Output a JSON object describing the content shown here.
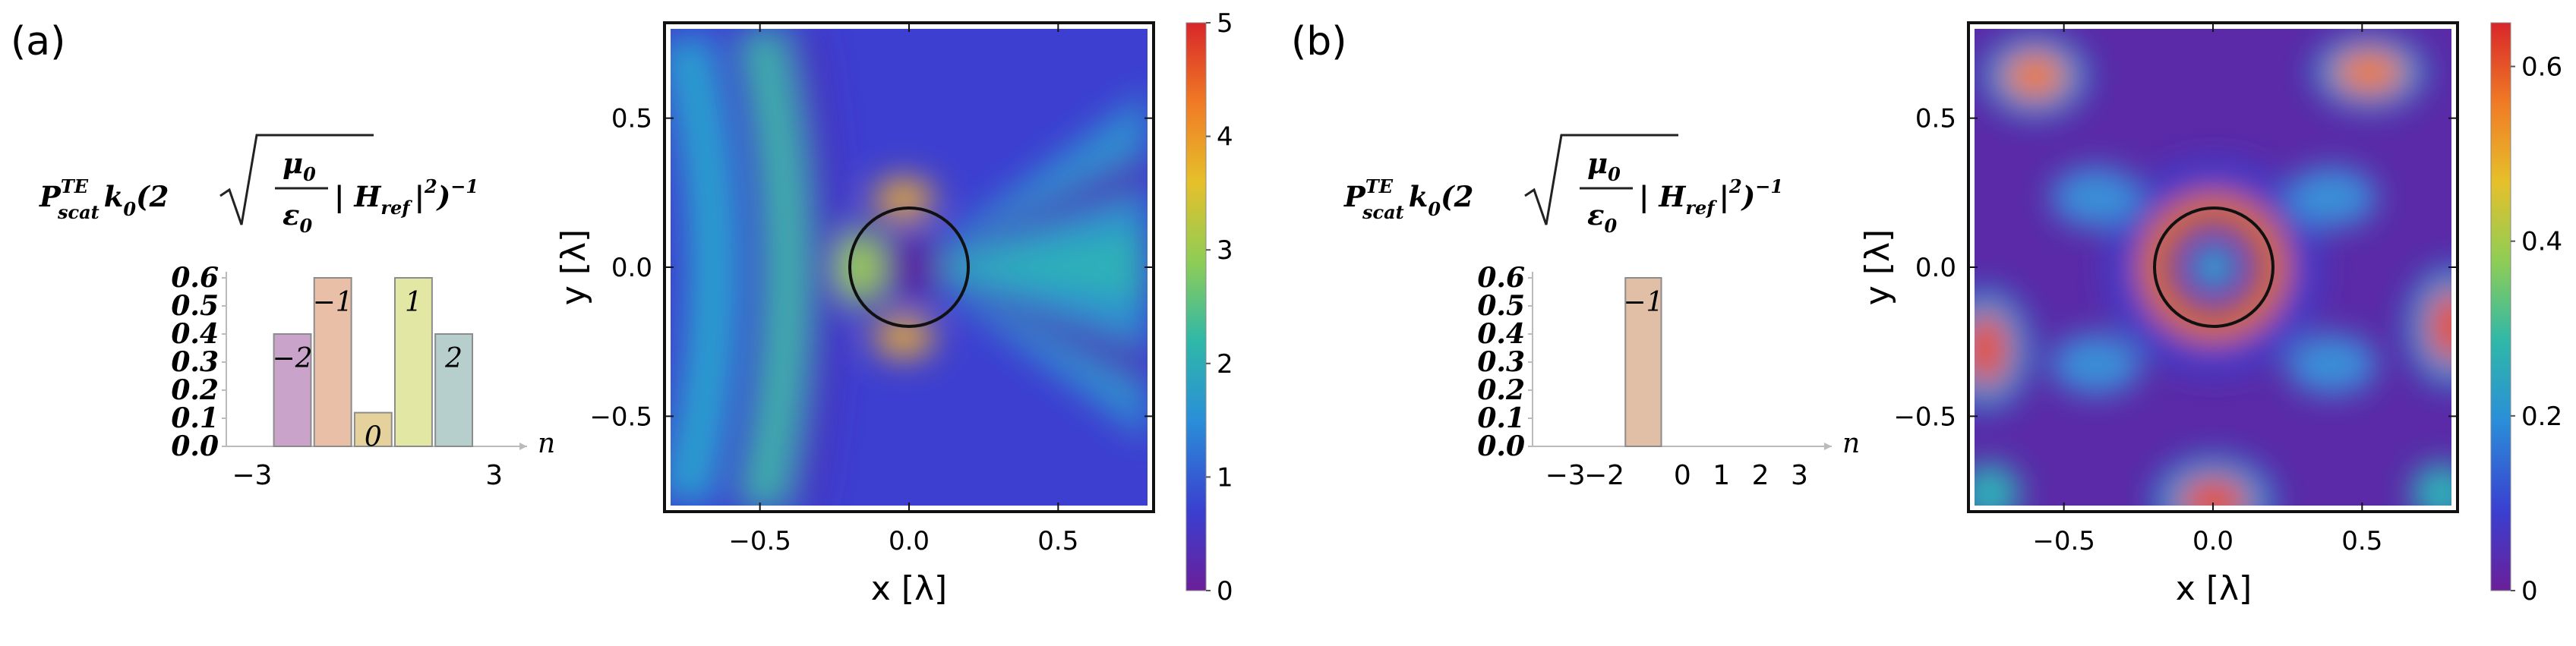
{
  "figure": {
    "panels": [
      {
        "label": "(a)",
        "bar_title": {
          "P": "P",
          "P_sup": "TE",
          "P_sub": "scat",
          "k": "k",
          "k_sub": "0",
          "open": "(2",
          "mu": "μ",
          "mu_sub": "0",
          "eps": "ε",
          "eps_sub": "0",
          "H": "| H",
          "H_sub": "ref",
          "close": "|",
          "close_sup": "2",
          "end": ")",
          "end_sup": "−1"
        },
        "map_xlabel": "x [λ]",
        "map_ylabel": "y [λ]",
        "colorbar": {
          "min": 0,
          "max": 5,
          "ticks": [
            "0",
            "1",
            "2",
            "3",
            "4",
            "5"
          ]
        }
      },
      {
        "label": "(b)",
        "bar_title": {
          "P": "P",
          "P_sup": "TE",
          "P_sub": "scat",
          "k": "k",
          "k_sub": "0",
          "open": "(2",
          "mu": "μ",
          "mu_sub": "0",
          "eps": "ε",
          "eps_sub": "0",
          "H": "| H",
          "H_sub": "ref",
          "close": "|",
          "close_sup": "2",
          "end": ")",
          "end_sup": "−1"
        },
        "map_xlabel": "x [λ]",
        "map_ylabel": "y [λ]",
        "colorbar": {
          "min": 0,
          "max": 0.65,
          "ticks": [
            "0",
            "0.2",
            "0.4",
            "0.6"
          ]
        }
      }
    ],
    "colorbar_colors": [
      "#6b1f99",
      "#3a3fd0",
      "#2a8fd8",
      "#2fb8a8",
      "#8fcd55",
      "#e6c02a",
      "#f07a25",
      "#d8262a"
    ]
  },
  "chart_data": [
    {
      "type": "bar",
      "panel": "(a)",
      "xlabel": "n",
      "x_ticks": [
        "−3",
        "3"
      ],
      "y_ticks": [
        "0.0",
        "0.1",
        "0.2",
        "0.3",
        "0.4",
        "0.5",
        "0.6"
      ],
      "ylim": [
        0,
        0.6
      ],
      "categories": [
        "−2",
        "−1",
        "0",
        "1",
        "2"
      ],
      "values": [
        0.4,
        0.6,
        0.12,
        0.6,
        0.4
      ],
      "bar_colors": [
        "#c9a3c9",
        "#e9bfa8",
        "#e4d19c",
        "#e2e8a4",
        "#b6cfcd"
      ]
    },
    {
      "type": "heatmap",
      "panel": "(a)",
      "xlabel": "x [λ]",
      "ylabel": "y [λ]",
      "x_ticks": [
        "−0.5",
        "0.0",
        "0.5"
      ],
      "y_ticks": [
        "−0.5",
        "0.0",
        "0.5"
      ],
      "xlim": [
        -0.82,
        0.82
      ],
      "ylim": [
        -0.82,
        0.82
      ],
      "circle_radius": 0.2,
      "colorbar_range": [
        0,
        5
      ]
    },
    {
      "type": "bar",
      "panel": "(b)",
      "xlabel": "n",
      "x_ticks": [
        "−3",
        "−2",
        "0",
        "1",
        "2",
        "3"
      ],
      "y_ticks": [
        "0.0",
        "0.1",
        "0.2",
        "0.3",
        "0.4",
        "0.5",
        "0.6"
      ],
      "ylim": [
        0,
        0.6
      ],
      "categories": [
        "−1"
      ],
      "values": [
        0.6
      ],
      "bar_colors": [
        "#e0bfa6"
      ]
    },
    {
      "type": "heatmap",
      "panel": "(b)",
      "xlabel": "x [λ]",
      "ylabel": "y [λ]",
      "x_ticks": [
        "−0.5",
        "0.0",
        "0.5"
      ],
      "y_ticks": [
        "−0.5",
        "0.0",
        "0.5"
      ],
      "xlim": [
        -0.82,
        0.82
      ],
      "ylim": [
        -0.82,
        0.82
      ],
      "circle_radius": 0.2,
      "colorbar_range": [
        0,
        0.65
      ]
    }
  ]
}
